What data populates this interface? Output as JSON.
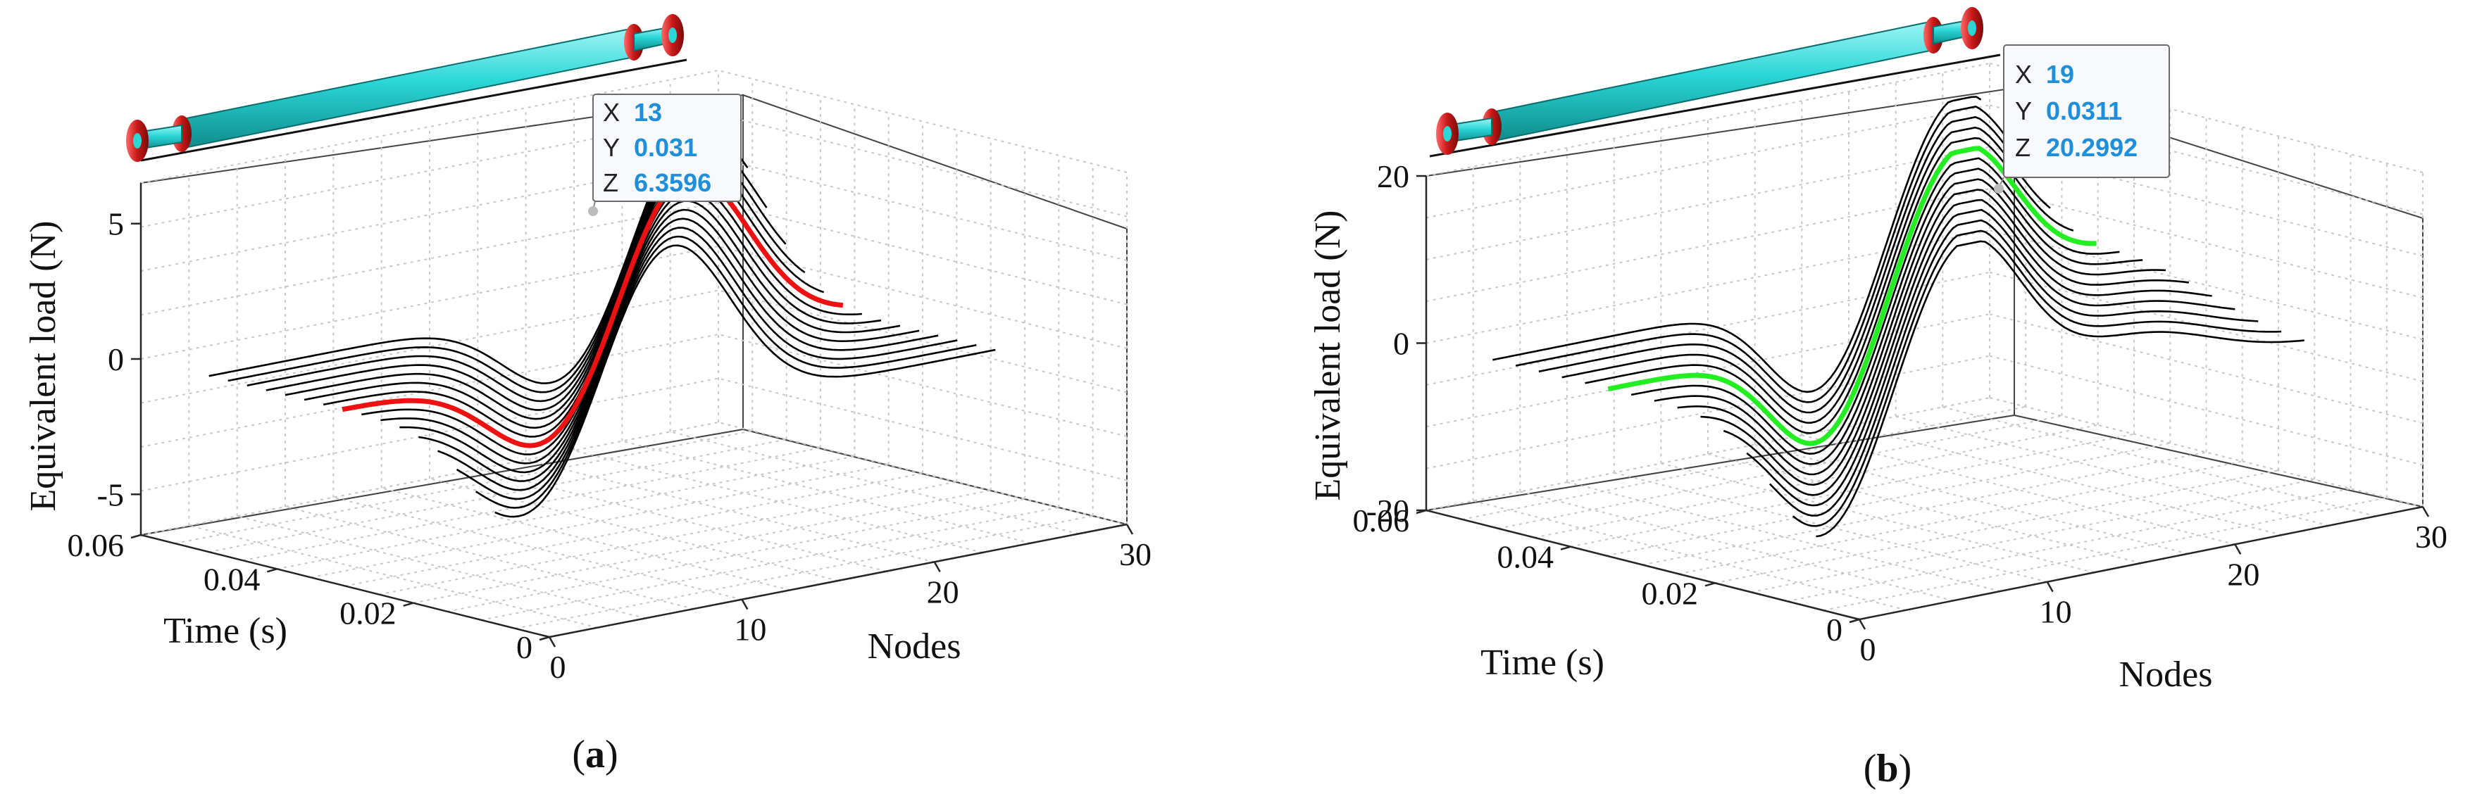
{
  "chart_data": [
    {
      "panel_label": "a",
      "type": "line3d",
      "xlabel": "Nodes",
      "ylabel": "Time (s)",
      "zlabel": "Equivalent load (N)",
      "x_ticks": [
        "0",
        "10",
        "20",
        "30"
      ],
      "y_ticks": [
        "0",
        "0.02",
        "0.04",
        "0.06"
      ],
      "z_ticks": [
        "-5",
        "0",
        "5"
      ],
      "xlim": [
        0,
        30
      ],
      "ylim": [
        0,
        0.06
      ],
      "zlim": [
        -6.5,
        6.5
      ],
      "series": {
        "shape": "sine_pulse",
        "count": 16,
        "time_start": 0.008,
        "time_step": 0.0028,
        "peak_node_start": 9,
        "peak_node_step": 1.1,
        "node_range": [
          0,
          26
        ],
        "amplitude": 6.3596,
        "highlight_index": 8,
        "highlight_color": "#ee1111",
        "base_color": "#000000"
      },
      "datatip": {
        "x_key": "X",
        "x_value": "13",
        "y_key": "Y",
        "y_value": "0.031",
        "z_key": "Z",
        "z_value": "6.3596"
      },
      "pipe": {
        "body_color": "#27d8d8",
        "flange_color": "#d42020"
      }
    },
    {
      "panel_label": "b",
      "type": "line3d",
      "xlabel": "Nodes",
      "ylabel": "Time (s)",
      "zlabel": "Equivalent load (N)",
      "x_ticks": [
        "0",
        "10",
        "20",
        "30"
      ],
      "y_ticks": [
        "0",
        "0.02",
        "0.04",
        "0.06"
      ],
      "z_ticks": [
        "-20",
        "0",
        "20"
      ],
      "xlim": [
        0,
        30
      ],
      "ylim": [
        0,
        0.06
      ],
      "zlim": [
        -20,
        20
      ],
      "series": {
        "shape": "two_mode",
        "count": 15,
        "time_start": 0.006,
        "time_step": 0.0032,
        "peak_node_start": 8,
        "peak_node_step": 1.2,
        "node_range": [
          0,
          26
        ],
        "amplitude": 20.2992,
        "highlight_index": 9,
        "highlight_color": "#22ee22",
        "base_color": "#000000"
      },
      "datatip": {
        "x_key": "X",
        "x_value": "19",
        "y_key": "Y",
        "y_value": "0.0311",
        "z_key": "Z",
        "z_value": "20.2992"
      },
      "pipe": {
        "body_color": "#27d8d8",
        "flange_color": "#d42020"
      }
    }
  ]
}
